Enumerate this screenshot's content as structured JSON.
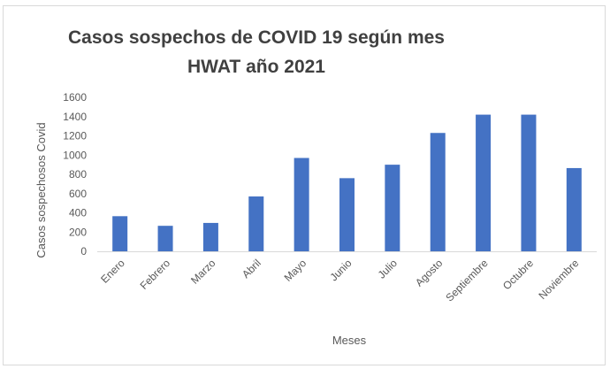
{
  "chart_data": {
    "type": "bar",
    "title": [
      "Casos sospechos de COVID 19 según mes",
      "HWAT año 2021"
    ],
    "xlabel": "Meses",
    "ylabel": "Casos sospechosos Covid",
    "ylim": [
      0,
      1600
    ],
    "yticks": [
      0,
      200,
      400,
      600,
      800,
      1000,
      1200,
      1400,
      1600
    ],
    "grid": false,
    "legend": "none",
    "categories": [
      "Enero",
      "Febrero",
      "Marzo",
      "Abril",
      "Mayo",
      "Junio",
      "Julio",
      "Agosto",
      "Septiembre",
      "Octubre",
      "Noviembre"
    ],
    "values": [
      365,
      265,
      295,
      570,
      970,
      760,
      900,
      1230,
      1420,
      1420,
      865
    ],
    "bar_color": "#4472c4"
  }
}
